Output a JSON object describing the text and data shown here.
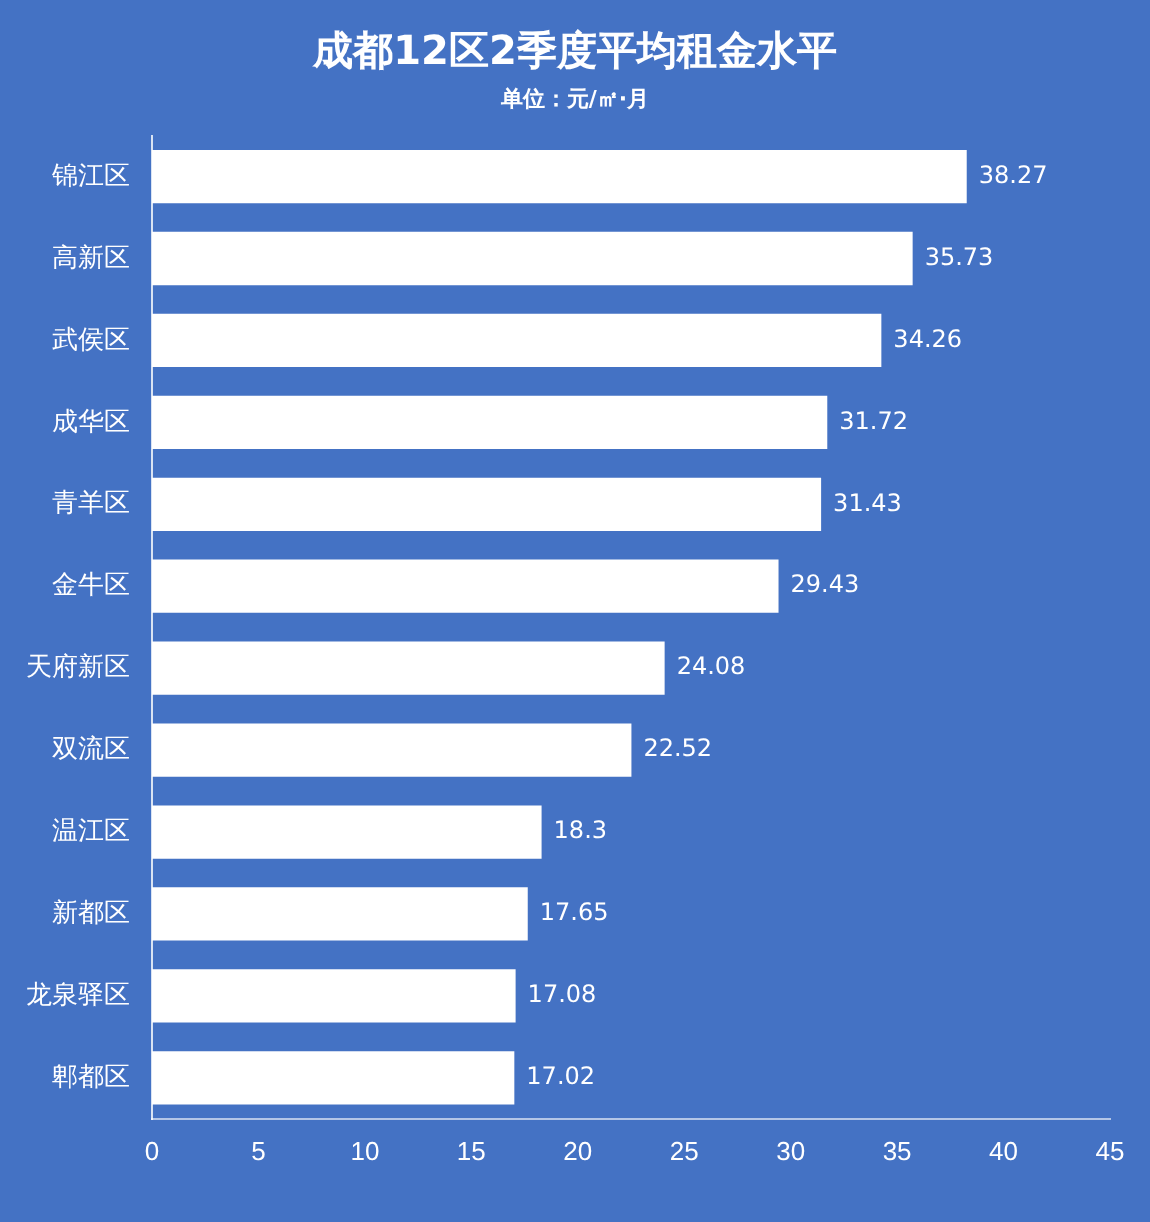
{
  "chart_data": {
    "type": "bar",
    "orientation": "horizontal",
    "title": "成都12区2季度平均租金水平",
    "subtitle": "单位：元/㎡·月",
    "categories": [
      "锦江区",
      "高新区",
      "武侯区",
      "成华区",
      "青羊区",
      "金牛区",
      "天府新区",
      "双流区",
      "温江区",
      "新都区",
      "龙泉驿区",
      "郫都区"
    ],
    "values": [
      38.27,
      35.73,
      34.26,
      31.72,
      31.43,
      29.43,
      24.08,
      22.52,
      18.3,
      17.65,
      17.08,
      17.02
    ],
    "color": "#ffffff",
    "xlim": [
      0,
      45
    ],
    "xticks": [
      0,
      5,
      10,
      15,
      20,
      25,
      30,
      35,
      40,
      45
    ],
    "data_labels": true,
    "grid": false,
    "legend": false
  }
}
